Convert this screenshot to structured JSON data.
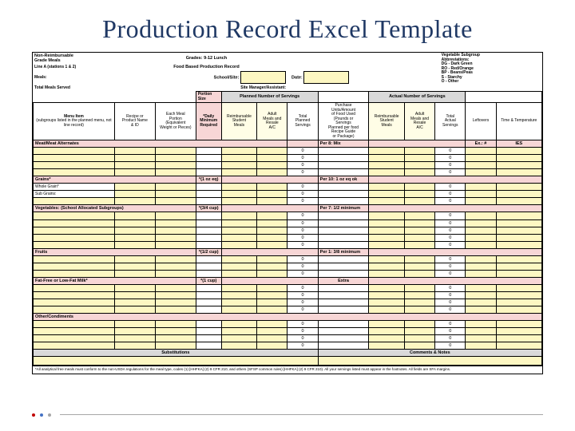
{
  "title": "Production Record Excel Template",
  "header": {
    "nonreimb": "Non-Reimbursable\nGrade Meals",
    "line": "Line A (stations 1 & 2)",
    "meals": "Meals:",
    "total_meals": "Total Meals Served",
    "grades_title": "Grades: 9-12 Lunch",
    "record_title": "Food Based Production Record",
    "school_site": "School/Site:",
    "site_manager": "Site Manager/Assistant:",
    "date": "Date:",
    "abbrev_title": "Vegetable Subgroup\nAbbreviations:",
    "abbrev": "DG - Dark Green\nRO - Red/Orange\nBP - Beans/Peas\nS - Starchy\nO - Other"
  },
  "band": {
    "planned": "Planned Number of Servings",
    "actual": "Actual Number of Servings"
  },
  "cols": {
    "menu_item": "Menu Item",
    "menu_sub": "(subgroups listed in the planned menu, not line record)",
    "recipe": "Recipe or\nProduct Name\n& ID",
    "portion_size": "Portion Size",
    "portion_sub": "Each Meal\nPortion\n(Equivalent\nWeight or Pieces)",
    "daily_min": "*Daily\nMinimum\nRequired",
    "reimb": "Reimbursable\nStudent\nMeals",
    "adult": "Adult\nMeals and\nResale\nA/C",
    "total_planned": "Total\nPlanned\nServings",
    "purchase": "Purchase\nUnits/Amount\nof Food Used\n(Pounds or\nServings\nPlanned per food\nRecipe Guide\nor Package)",
    "reimb2": "Reimbursable\nStudent\nMeals",
    "adult2": "Adult\nMeals and\nResale\nA/C",
    "total_actual": "Total\nActual\nServings",
    "leftover": "Leftovers",
    "time_temp": "Time & Temperature"
  },
  "sections": {
    "meat": {
      "label": "Meat/Meat Alternates",
      "ex": "Ex.: #",
      "ies": "IES"
    },
    "grains": {
      "label": "Grains*",
      "req": "*(1 oz eq)"
    },
    "wg": {
      "label": "Whole Grain*"
    },
    "sg": {
      "label": "Sub Grains:"
    },
    "veg": {
      "label": "Vegetables: (School Allocated Subgroups)",
      "req": "*(3/4 cup)"
    },
    "fruits": {
      "label": "Fruits",
      "req": "*(1/2 cup)"
    },
    "milk": {
      "label": "Fat-Free or Low-Fat Milk*",
      "req": "*(1 cup)"
    },
    "other": {
      "label": "Other/Condiments"
    },
    "subs": {
      "label": "Substitutions"
    },
    "comments": {
      "label": "Comments & Notes"
    }
  },
  "req_labels": {
    "meat": "Per 8: Mix",
    "grains": "Per 10: 1 oz eq ok",
    "veg": "Per 7: 1/2 minimum",
    "fruit": "Per 1: 3/8 minimum"
  },
  "extra": "Extra",
  "zero": "0",
  "footnote": "*All analytical free meals must conform to the non-USDA regulations for the meal type, codes (1) [HHFKA] (2) 9 CFR 210, and others (SFSP common rules) [HHFKA] (2) 9 CFR 210). All your servings listed must appear in the footnotes. All fields are SFA margins."
}
